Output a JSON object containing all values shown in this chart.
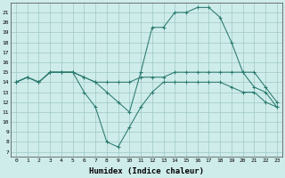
{
  "xlabel": "Humidex (Indice chaleur)",
  "background_color": "#ceecea",
  "line_color": "#2a7a6f",
  "grid_color": "#9ec8c5",
  "xlim": [
    -0.5,
    23.5
  ],
  "ylim": [
    6.5,
    22.0
  ],
  "xticks": [
    0,
    1,
    2,
    3,
    4,
    5,
    6,
    7,
    8,
    9,
    10,
    11,
    12,
    13,
    14,
    15,
    16,
    17,
    18,
    19,
    20,
    21,
    22,
    23
  ],
  "yticks": [
    7,
    8,
    9,
    10,
    11,
    12,
    13,
    14,
    15,
    16,
    17,
    18,
    19,
    20,
    21
  ],
  "lines": [
    {
      "x": [
        0,
        1,
        2,
        3,
        4,
        5,
        6,
        7,
        8,
        9,
        10,
        11,
        12,
        13,
        14,
        15,
        16,
        17,
        18,
        19,
        20,
        21,
        22,
        23
      ],
      "y": [
        14,
        14.5,
        14,
        15,
        15,
        15,
        14.5,
        14,
        13,
        12,
        11,
        15,
        19.5,
        19.5,
        21,
        21,
        21.5,
        21.5,
        20.5,
        18,
        15,
        13.5,
        13,
        11.5
      ]
    },
    {
      "x": [
        0,
        1,
        2,
        3,
        4,
        5,
        6,
        7,
        8,
        9,
        10,
        11,
        12,
        13,
        14,
        15,
        16,
        17,
        18,
        19,
        20,
        21,
        22,
        23
      ],
      "y": [
        14,
        14.5,
        14,
        15,
        15,
        15,
        14.5,
        14,
        14,
        14,
        14,
        14.5,
        14.5,
        14.5,
        15,
        15,
        15,
        15,
        15,
        15,
        15,
        15,
        13.5,
        12
      ]
    },
    {
      "x": [
        0,
        1,
        2,
        3,
        4,
        5,
        6,
        7,
        8,
        9,
        10,
        11,
        12,
        13,
        14,
        15,
        16,
        17,
        18,
        19,
        20,
        21,
        22,
        23
      ],
      "y": [
        14,
        14.5,
        14,
        15,
        15,
        15,
        13,
        11.5,
        8,
        7.5,
        9.5,
        11.5,
        13,
        14,
        14,
        14,
        14,
        14,
        14,
        13.5,
        13,
        13,
        12,
        11.5
      ]
    }
  ]
}
